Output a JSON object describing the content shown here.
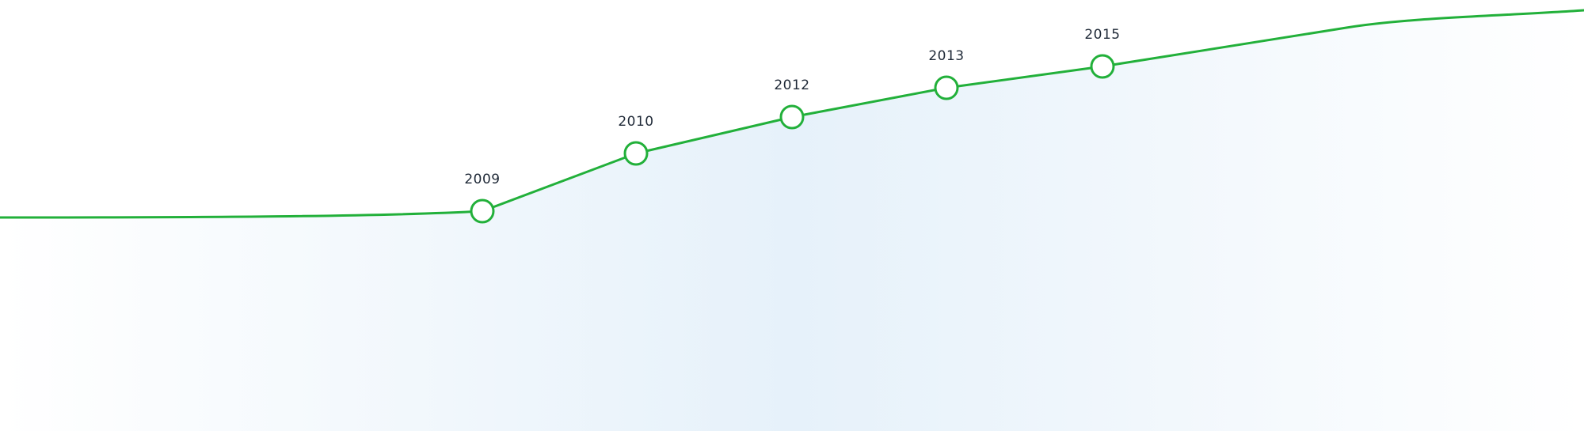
{
  "timeline": {
    "line_color": "#22b03a",
    "marker_fill": "#ffffff",
    "area_gradient": [
      "#ffffff",
      "#e6f1fa",
      "#ffffff"
    ],
    "milestones": [
      {
        "label": "2009"
      },
      {
        "label": "2010"
      },
      {
        "label": "2012"
      },
      {
        "label": "2013"
      },
      {
        "label": "2015"
      }
    ]
  }
}
